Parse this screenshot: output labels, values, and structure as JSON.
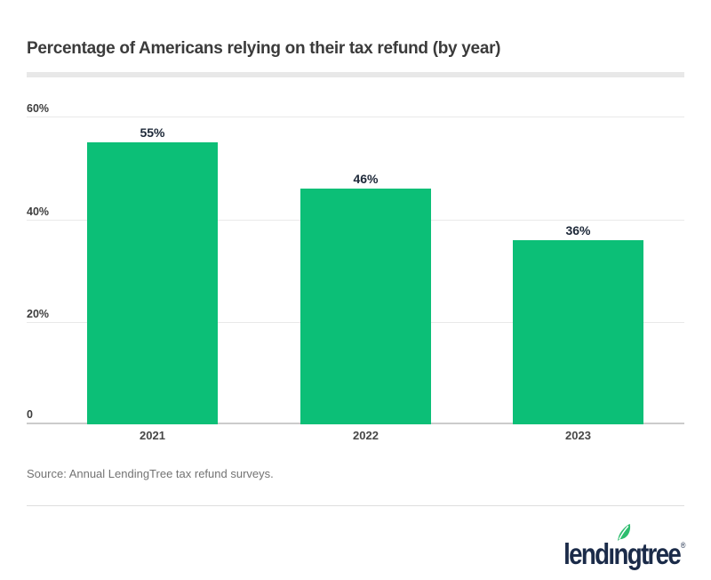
{
  "title": "Percentage of Americans relying on their tax refund (by year)",
  "source": "Source: Annual LendingTree tax refund surveys.",
  "logo": {
    "brand": "lendingtree",
    "brand_left": "lend",
    "brand_dotless_i": "ı",
    "brand_right": "ngtree",
    "registered_mark": "®"
  },
  "colors": {
    "bar_green": "#0cbf77",
    "leaf_green": "#2dbd6e",
    "logo_navy": "#1b2b49",
    "gridline_gray": "#e9e9e9",
    "axis_gray": "#cccccc",
    "title_gray": "#3b3b3b",
    "value_label_navy": "#1d2838",
    "source_gray": "#737373"
  },
  "chart_data": {
    "type": "bar",
    "title": "Percentage of Americans relying on their tax refund (by year)",
    "categories": [
      "2021",
      "2022",
      "2023"
    ],
    "values": [
      55,
      46,
      36
    ],
    "value_labels": [
      "55%",
      "46%",
      "36%"
    ],
    "xlabel": "",
    "ylabel": "",
    "ylim": [
      0,
      60
    ],
    "yticks": [
      {
        "value": 60,
        "label": "60%"
      },
      {
        "value": 40,
        "label": "40%"
      },
      {
        "value": 20,
        "label": "20%"
      },
      {
        "value": 0,
        "label": "0"
      }
    ],
    "grid": "horizontal",
    "legend_position": "none",
    "bar_color": "#0cbf77"
  }
}
